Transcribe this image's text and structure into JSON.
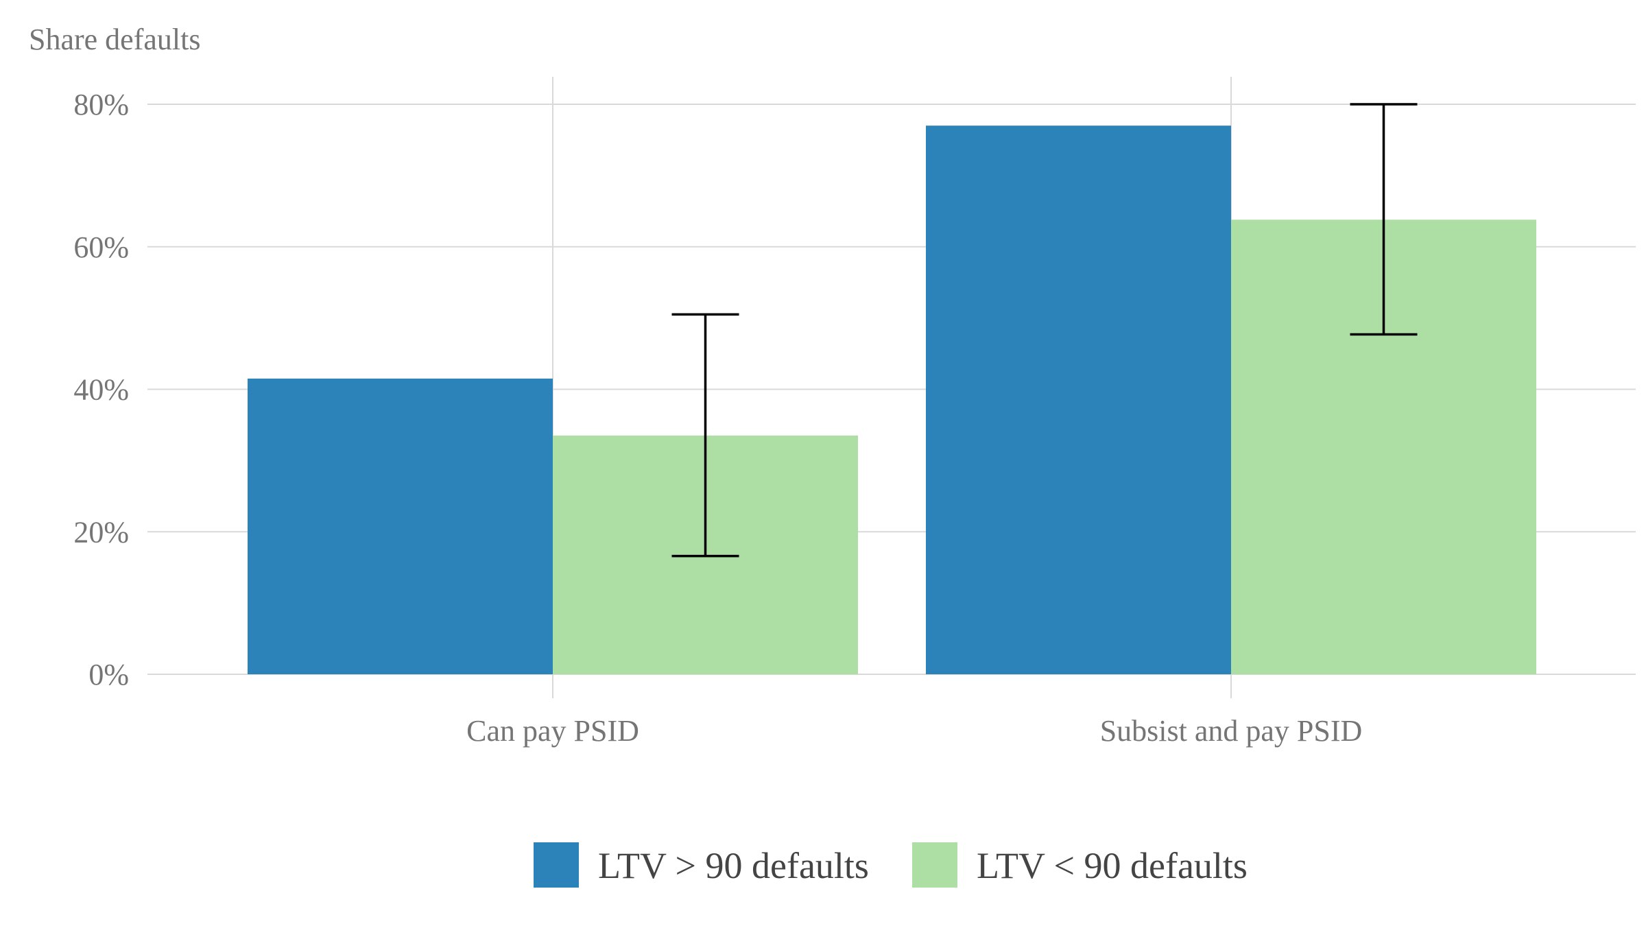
{
  "chart_data": {
    "type": "bar",
    "ylabel": "Share defaults",
    "xlabel": "",
    "categories": [
      "Can pay PSID",
      "Subsist and pay PSID"
    ],
    "series": [
      {
        "name": "LTV > 90 defaults",
        "color": "#2c83b9",
        "values": [
          0.415,
          0.77
        ]
      },
      {
        "name": "LTV < 90 defaults",
        "color": "#addfa4",
        "values": [
          0.335,
          0.638
        ],
        "error_low": [
          0.166,
          0.477
        ],
        "error_high": [
          0.505,
          0.8
        ]
      }
    ],
    "ylim": [
      0,
      0.8
    ],
    "yticks": [
      {
        "value": 0,
        "label": "0%"
      },
      {
        "value": 0.2,
        "label": "20%"
      },
      {
        "value": 0.4,
        "label": "40%"
      },
      {
        "value": 0.6,
        "label": "60%"
      },
      {
        "value": 0.8,
        "label": "80%"
      }
    ],
    "grid": true,
    "legend_position": "bottom"
  }
}
